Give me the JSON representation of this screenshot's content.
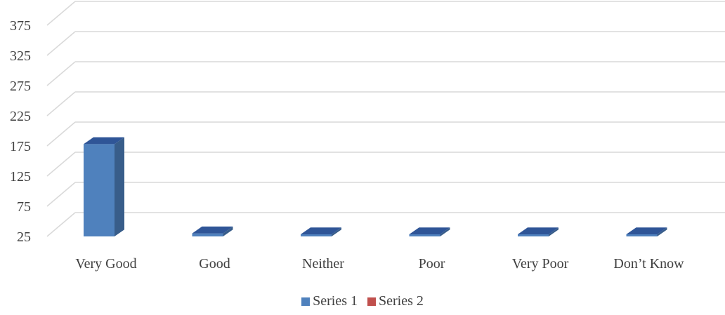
{
  "chart_data": {
    "type": "bar",
    "style": "3d-column",
    "categories": [
      "Very Good",
      "Good",
      "Neither",
      "Poor",
      "Very Poor",
      "Don’t Know"
    ],
    "series": [
      {
        "name": "Series 1",
        "color": "#4f81bd",
        "values": [
          178,
          30,
          25,
          25,
          25,
          25
        ]
      },
      {
        "name": "Series 2",
        "color": "#c0504d",
        "values": [
          null,
          null,
          null,
          null,
          null,
          null
        ]
      }
    ],
    "ylim": [
      25,
      375
    ],
    "yticks": [
      25,
      75,
      125,
      175,
      225,
      275,
      325,
      375
    ],
    "grid": true,
    "legend": "bottom",
    "colors": {
      "bar_front": "#4f81bd",
      "bar_side": "#385d8a",
      "bar_top": "#2f5597",
      "grid": "#d9d9d9",
      "text": "#404040"
    }
  }
}
